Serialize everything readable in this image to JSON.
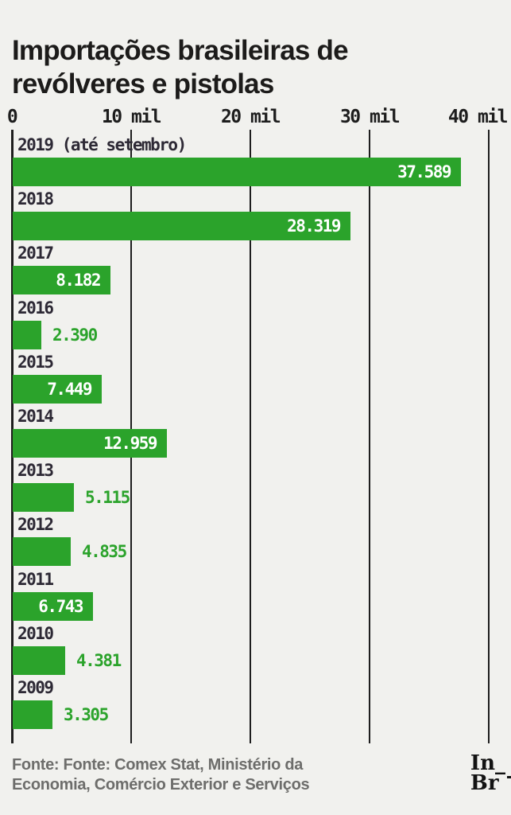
{
  "title": {
    "lines": [
      "Importações brasileiras de",
      "revólveres e pistolas"
    ]
  },
  "chart_data": {
    "type": "bar",
    "orientation": "horizontal",
    "title": "Importações brasileiras de revólveres e pistolas",
    "categories": [
      "2019 (até setembro)",
      "2018",
      "2017",
      "2016",
      "2015",
      "2014",
      "2013",
      "2012",
      "2011",
      "2010",
      "2009"
    ],
    "values": [
      37589,
      28319,
      8182,
      2390,
      7449,
      12959,
      5115,
      4835,
      6743,
      4381,
      3305
    ],
    "value_labels": [
      "37.589",
      "28.319",
      "8.182",
      "2.390",
      "7.449",
      "12.959",
      "5.115",
      "4.835",
      "6.743",
      "4.381",
      "3.305"
    ],
    "x_axis": {
      "ticks": [
        "0",
        "10 mil",
        "20 mil",
        "30 mil",
        "40 mil"
      ],
      "tick_values": [
        0,
        10000,
        20000,
        30000,
        40000
      ],
      "max": 40000
    },
    "grid": "vertical lines on",
    "legend": "none",
    "bar_color": "#2ba32b",
    "value_inside_color": "#ffffff",
    "category_label_color": "#2d2935",
    "background_color": "#f1f1ee"
  },
  "footer": {
    "lines": [
      "Fonte: Fonte: Comex Stat, Ministério da",
      "Economia, Comércio Exterior e Serviços"
    ]
  },
  "logo": {
    "line1": "In_",
    "line2": "Br"
  }
}
